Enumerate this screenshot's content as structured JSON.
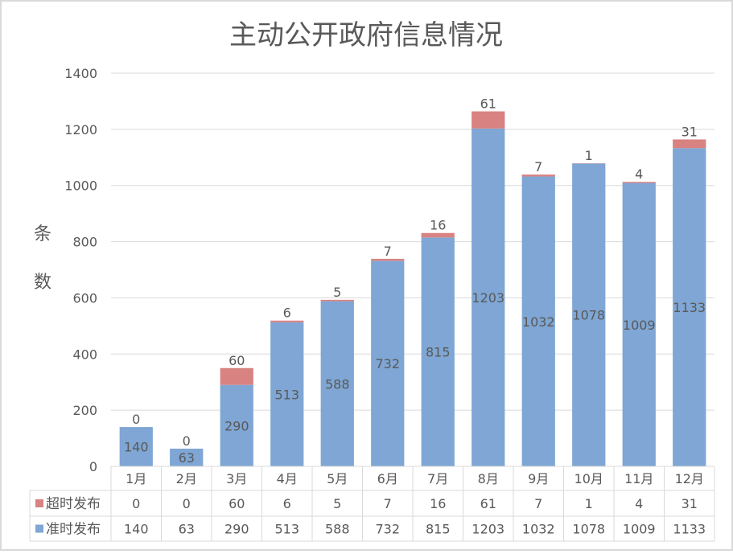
{
  "chart_data": {
    "type": "bar",
    "stacked": true,
    "title": "主动公开政府信息情况",
    "ylabel": "条数",
    "xlabel": "",
    "ylim": [
      0,
      1400
    ],
    "yticks": [
      0,
      200,
      400,
      600,
      800,
      1000,
      1200,
      1400
    ],
    "grid": true,
    "legend": "data-table-bottom",
    "categories": [
      "1月",
      "2月",
      "3月",
      "4月",
      "5月",
      "6月",
      "7月",
      "8月",
      "9月",
      "10月",
      "11月",
      "12月"
    ],
    "series": [
      {
        "name": "准时发布",
        "color": "#7FA6D4",
        "values": [
          140,
          63,
          290,
          513,
          588,
          732,
          815,
          1203,
          1032,
          1078,
          1009,
          1133
        ]
      },
      {
        "name": "超时发布",
        "color": "#D98282",
        "values": [
          0,
          0,
          60,
          6,
          5,
          7,
          16,
          61,
          7,
          1,
          4,
          31
        ]
      }
    ],
    "table_order": [
      1,
      0
    ]
  }
}
